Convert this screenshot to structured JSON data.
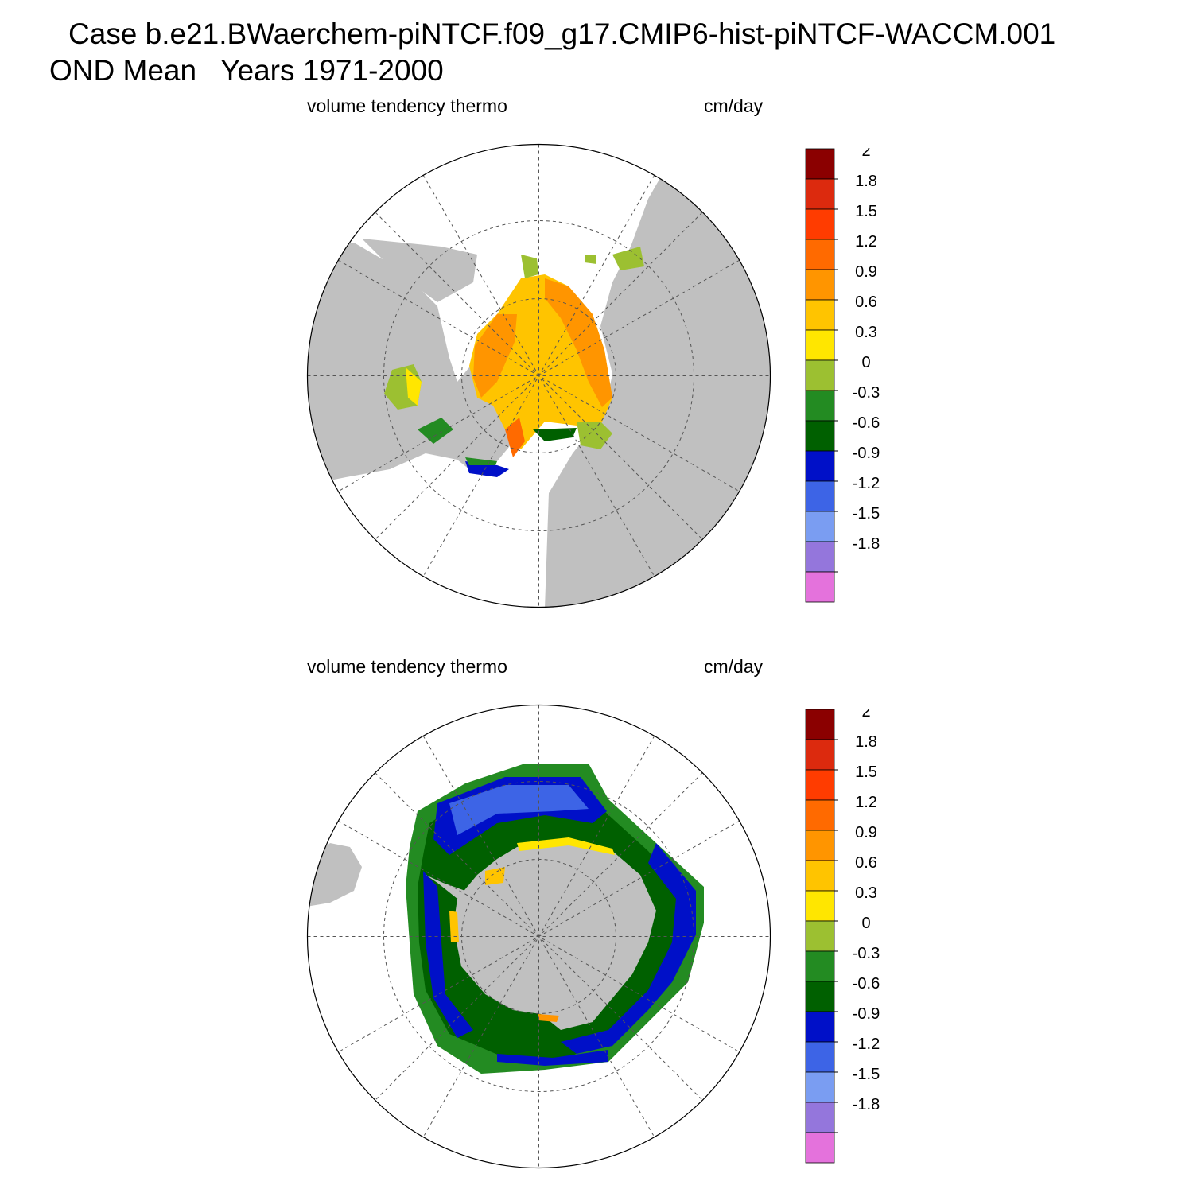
{
  "title": {
    "line1": "Case b.e21.BWaerchem-piNTCF.f09_g17.CMIP6-hist-piNTCF-WACCM.001",
    "line2": "OND Mean   Years 1971-2000"
  },
  "panels": [
    {
      "id": "north",
      "hemisphere": "northern",
      "variable": "volume tendency thermo",
      "units": "cm/day"
    },
    {
      "id": "south",
      "hemisphere": "southern",
      "variable": "volume tendency thermo",
      "units": "cm/day"
    }
  ],
  "colorbar": {
    "labels": [
      "2",
      "1.8",
      "1.5",
      "1.2",
      "0.9",
      "0.6",
      "0.3",
      "0",
      "-0.3",
      "-0.6",
      "-0.9",
      "-1.2",
      "-1.5",
      "-1.8"
    ],
    "colors": [
      "#8b0000",
      "#dc2a0e",
      "#ff3c00",
      "#ff6a00",
      "#ff9500",
      "#ffc400",
      "#ffe600",
      "#9cc031",
      "#238b22",
      "#006000",
      "#0010c8",
      "#3d64e6",
      "#7a9df2",
      "#9476dc",
      "#e472dc"
    ]
  },
  "colors": {
    "land": "#c0c0c0",
    "ocean": "#ffffff",
    "grid": "#555555"
  }
}
